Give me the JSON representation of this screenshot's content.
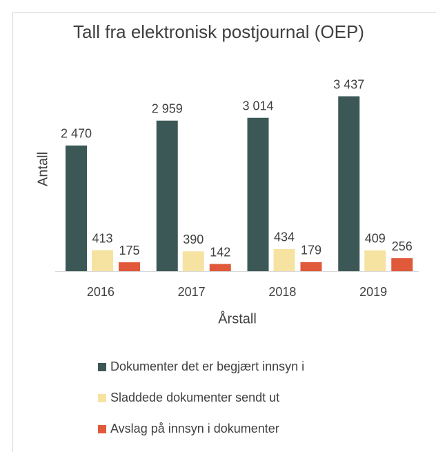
{
  "chart_data": {
    "type": "bar",
    "title": "Tall fra elektronisk postjournal (OEP)",
    "x_label": "Årstall",
    "y_label": "Antall",
    "categories": [
      "2016",
      "2017",
      "2018",
      "2019"
    ],
    "series": [
      {
        "name": "Dokumenter det er begjært innsyn i",
        "color": "#3b5856",
        "values": [
          2470,
          2959,
          3014,
          3437
        ],
        "value_labels": [
          "2 470",
          "2 959",
          "3 014",
          "3 437"
        ]
      },
      {
        "name": "Sladdede dokumenter sendt ut",
        "color": "#f6e3a1",
        "values": [
          413,
          390,
          434,
          409
        ]
      },
      {
        "name": "Avslag på innsyn i dokumenter",
        "color": "#e0593a",
        "values": [
          175,
          142,
          179,
          256
        ]
      }
    ],
    "ylim": [
      0,
      4000
    ],
    "legend": "bottom"
  }
}
